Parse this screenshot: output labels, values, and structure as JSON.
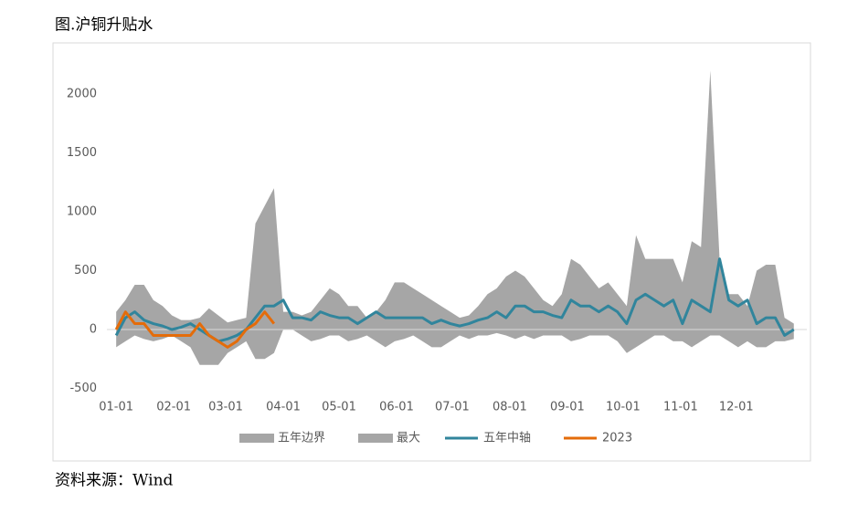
{
  "chart_data": {
    "type": "line",
    "title": "图.沪铜升贴水",
    "x": [
      0,
      5,
      10,
      15,
      20,
      25,
      30,
      35,
      40,
      45,
      50,
      55,
      60,
      65,
      70,
      75,
      80,
      85,
      90,
      95,
      100,
      105,
      110,
      115,
      120,
      125,
      130,
      135,
      140,
      145,
      150,
      155,
      160,
      165,
      170,
      175,
      180,
      185,
      190,
      195,
      200,
      205,
      210,
      215,
      220,
      225,
      230,
      235,
      240,
      245,
      250,
      255,
      260,
      265,
      270,
      275,
      280,
      285,
      290,
      295,
      300,
      305,
      310,
      315,
      320,
      325,
      330,
      335,
      340,
      345,
      350,
      355,
      360,
      365
    ],
    "xlim": [
      -5,
      372
    ],
    "xticks": [
      {
        "value": 0,
        "label": "01-01"
      },
      {
        "value": 31,
        "label": "02-01"
      },
      {
        "value": 59,
        "label": "03-01"
      },
      {
        "value": 90,
        "label": "04-01"
      },
      {
        "value": 120,
        "label": "05-01"
      },
      {
        "value": 151,
        "label": "06-01"
      },
      {
        "value": 181,
        "label": "07-01"
      },
      {
        "value": 212,
        "label": "08-01"
      },
      {
        "value": 243,
        "label": "09-01"
      },
      {
        "value": 273,
        "label": "10-01"
      },
      {
        "value": 304,
        "label": "11-01"
      },
      {
        "value": 334,
        "label": "12-01"
      }
    ],
    "ylim": [
      -500,
      2250
    ],
    "yticks": [
      -500,
      0,
      500,
      1000,
      1500,
      2000
    ],
    "series": [
      {
        "name": "五年边界",
        "style": "area",
        "color": "#a6a6a6",
        "values": [
          -150,
          -100,
          -50,
          -80,
          -100,
          -80,
          -50,
          -100,
          -150,
          -300,
          -300,
          -300,
          -200,
          -150,
          -100,
          -250,
          -250,
          -200,
          0,
          0,
          -50,
          -100,
          -80,
          -50,
          -50,
          -100,
          -80,
          -50,
          -100,
          -150,
          -100,
          -80,
          -50,
          -100,
          -150,
          -150,
          -100,
          -50,
          -80,
          -50,
          -50,
          -30,
          -50,
          -80,
          -50,
          -80,
          -50,
          -50,
          -50,
          -100,
          -80,
          -50,
          -50,
          -50,
          -100,
          -200,
          -150,
          -100,
          -50,
          -50,
          -100,
          -100,
          -150,
          -100,
          -50,
          -50,
          -100,
          -150,
          -100,
          -150,
          -150,
          -100,
          -100,
          -80
        ]
      },
      {
        "name": "最大",
        "style": "area",
        "color": "#a6a6a6",
        "values": [
          150,
          250,
          380,
          380,
          250,
          200,
          120,
          80,
          80,
          100,
          180,
          120,
          60,
          80,
          100,
          900,
          1050,
          1200,
          150,
          150,
          120,
          150,
          250,
          350,
          300,
          200,
          200,
          100,
          150,
          250,
          400,
          400,
          350,
          300,
          250,
          200,
          150,
          100,
          120,
          200,
          300,
          350,
          450,
          500,
          450,
          350,
          250,
          200,
          300,
          600,
          550,
          450,
          350,
          400,
          300,
          200,
          800,
          600,
          600,
          600,
          600,
          400,
          750,
          700,
          2200,
          600,
          300,
          300,
          200,
          500,
          550,
          550,
          100,
          50
        ]
      },
      {
        "name": "五年中轴",
        "style": "line",
        "color": "#31859c",
        "values": [
          -50,
          100,
          150,
          80,
          50,
          30,
          0,
          20,
          50,
          0,
          -50,
          -100,
          -80,
          -50,
          0,
          100,
          200,
          200,
          250,
          100,
          100,
          80,
          150,
          120,
          100,
          100,
          50,
          100,
          150,
          100,
          100,
          100,
          100,
          100,
          50,
          80,
          50,
          30,
          50,
          80,
          100,
          150,
          100,
          200,
          200,
          150,
          150,
          120,
          100,
          250,
          200,
          200,
          150,
          200,
          150,
          50,
          250,
          300,
          250,
          200,
          250,
          50,
          250,
          200,
          150,
          600,
          250,
          200,
          250,
          50,
          100,
          100,
          -50,
          0
        ]
      },
      {
        "name": "2023",
        "style": "line",
        "color": "#e46c0a",
        "values": [
          0,
          150,
          50,
          50,
          -50,
          -50,
          -50,
          -50,
          -50,
          50,
          -50,
          -100,
          -150,
          -100,
          0,
          50,
          150,
          50,
          null,
          null,
          null,
          null,
          null,
          null,
          null,
          null,
          null,
          null,
          null,
          null,
          null,
          null,
          null,
          null,
          null,
          null,
          null,
          null,
          null,
          null,
          null,
          null,
          null,
          null,
          null,
          null,
          null,
          null,
          null,
          null,
          null,
          null,
          null,
          null,
          null,
          null,
          null,
          null,
          null,
          null,
          null,
          null,
          null,
          null,
          null,
          null,
          null,
          null,
          null,
          null,
          null,
          null,
          null,
          null
        ]
      }
    ]
  },
  "source": "资料来源：Wind"
}
